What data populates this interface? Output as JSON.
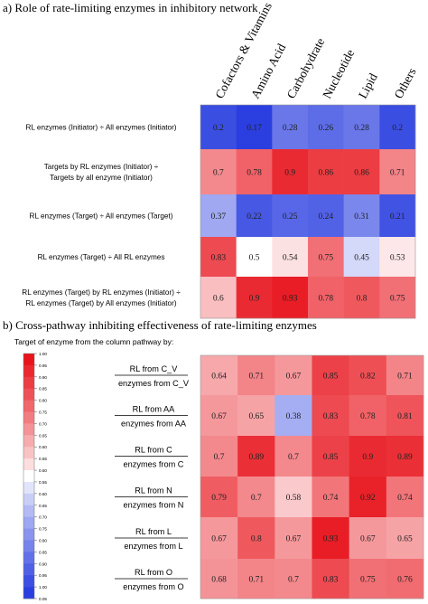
{
  "panel_a": {
    "title": "a)  Role of rate-limiting enzymes in inhibitory network"
  },
  "panel_b": {
    "title": "b)  Cross-pathway inhibiting effectiveness of rate-limiting enzymes",
    "legend_caption": "Target of enzyme from the column pathway by:",
    "legend_ticks": [
      "1.00",
      "0.95",
      "0.90",
      "0.85",
      "0.80",
      "0.75",
      "0.70",
      "0.65",
      "0.60",
      "0.55",
      "0.50",
      "0.55",
      "0.60",
      "0.65",
      "0.70",
      "0.75",
      "0.80",
      "0.85",
      "0.90",
      "0.95",
      "1.00",
      "0.05"
    ]
  },
  "chart_data": [
    {
      "type": "heatmap",
      "title": "Role of rate-limiting enzymes in inhibitory network",
      "columns": [
        "Cofactors & Vitamins",
        "Amino Acid",
        "Carbohydrate",
        "Nucleotide",
        "Lipid",
        "Others"
      ],
      "rows": [
        {
          "label": [
            "RL enzymes (Initiator) ÷ All enzymes (Initiator)"
          ],
          "values": [
            0.2,
            0.17,
            0.28,
            0.26,
            0.28,
            0.2
          ]
        },
        {
          "label": [
            "Targets by RL enzymes (Initiator)  ÷",
            "Targets by all enzyme (Initiator)"
          ],
          "values": [
            0.7,
            0.78,
            0.9,
            0.86,
            0.86,
            0.71
          ]
        },
        {
          "label": [
            "RL enzymes (Target) ÷ All enzymes (Target)"
          ],
          "values": [
            0.37,
            0.22,
            0.25,
            0.24,
            0.31,
            0.21
          ]
        },
        {
          "label": [
            "RL enzymes (Target) ÷ All RL enzymes"
          ],
          "values": [
            0.83,
            0.5,
            0.54,
            0.75,
            0.45,
            0.53
          ]
        },
        {
          "label": [
            "RL enzymes (Target) by RL enzymes (Initiator) ÷",
            "RL enzymes (Target)  by All enzymes (Initiator)"
          ],
          "values": [
            0.6,
            0.9,
            0.93,
            0.78,
            0.8,
            0.75
          ]
        }
      ],
      "colorscale": {
        "low": "#2b3fe0",
        "mid": "#ffffff",
        "high": "#e8141c",
        "mid_value": 0.5
      }
    },
    {
      "type": "heatmap",
      "title": "Cross-pathway inhibiting effectiveness of rate-limiting enzymes",
      "rows": [
        {
          "numerator": "RL from C_V",
          "denominator": "enzymes from C_V",
          "values": [
            0.64,
            0.71,
            0.67,
            0.85,
            0.82,
            0.71
          ]
        },
        {
          "numerator": "RL from AA",
          "denominator": "enzymes from AA",
          "values": [
            0.67,
            0.65,
            0.38,
            0.83,
            0.78,
            0.81
          ]
        },
        {
          "numerator": "RL from C",
          "denominator": "enzymes from C",
          "values": [
            0.7,
            0.89,
            0.7,
            0.85,
            0.9,
            0.89
          ]
        },
        {
          "numerator": "RL from N",
          "denominator": "enzymes from N",
          "values": [
            0.79,
            0.7,
            0.58,
            0.74,
            0.92,
            0.74
          ]
        },
        {
          "numerator": "RL from L",
          "denominator": "enzymes from L",
          "values": [
            0.67,
            0.8,
            0.67,
            0.93,
            0.67,
            0.65
          ]
        },
        {
          "numerator": "RL from O",
          "denominator": "enzymes from O",
          "values": [
            0.68,
            0.71,
            0.7,
            0.83,
            0.75,
            0.76
          ]
        }
      ],
      "colorscale": {
        "low": "#2b3fe0",
        "mid": "#ffffff",
        "high": "#e8141c",
        "mid_value": 0.5
      }
    }
  ]
}
